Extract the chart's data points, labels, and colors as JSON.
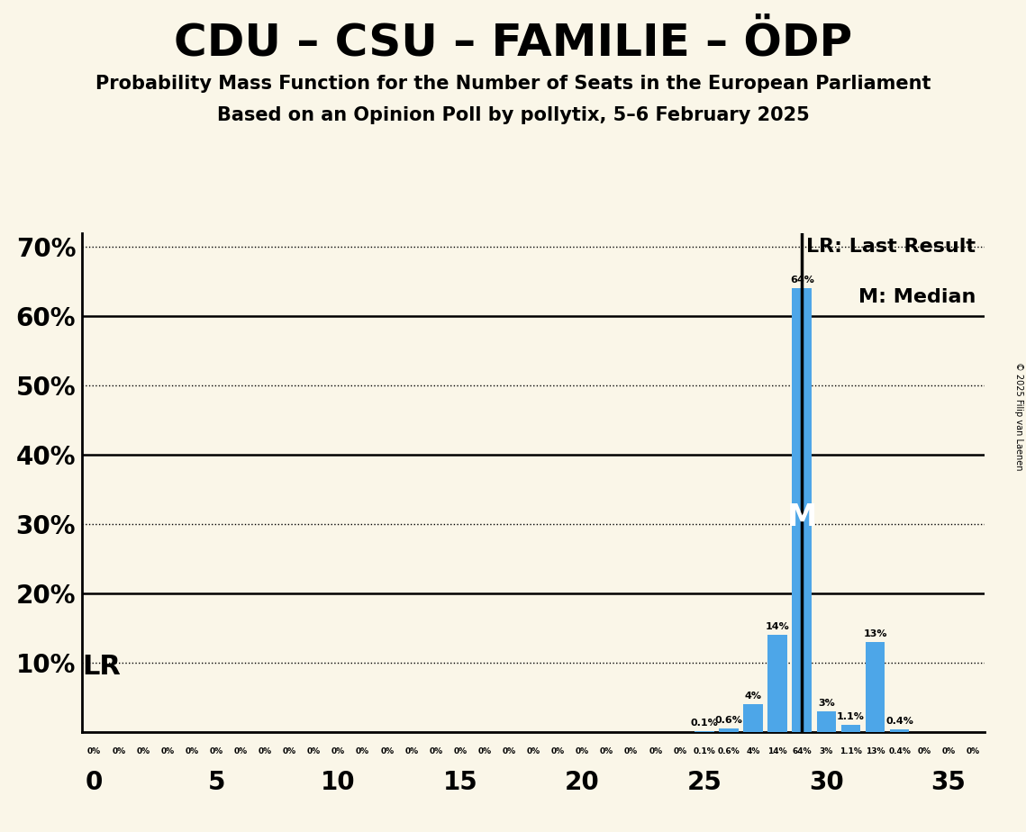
{
  "title": "CDU – CSU – FAMILIE – ÖDP",
  "subtitle1": "Probability Mass Function for the Number of Seats in the European Parliament",
  "subtitle2": "Based on an Opinion Poll by pollytix, 5–6 February 2025",
  "copyright": "© 2025 Filip van Laenen",
  "background_color": "#faf6e8",
  "bar_color": "#4da6e8",
  "seats": [
    0,
    1,
    2,
    3,
    4,
    5,
    6,
    7,
    8,
    9,
    10,
    11,
    12,
    13,
    14,
    15,
    16,
    17,
    18,
    19,
    20,
    21,
    22,
    23,
    24,
    25,
    26,
    27,
    28,
    29,
    30,
    31,
    32,
    33,
    34,
    35,
    36
  ],
  "probabilities": [
    0,
    0,
    0,
    0,
    0,
    0,
    0,
    0,
    0,
    0,
    0,
    0,
    0,
    0,
    0,
    0,
    0,
    0,
    0,
    0,
    0,
    0,
    0,
    0,
    0,
    0.001,
    0.006,
    0.04,
    0.14,
    0.64,
    0.03,
    0.011,
    0.13,
    0.004,
    0,
    0,
    0
  ],
  "labels": [
    "0%",
    "0%",
    "0%",
    "0%",
    "0%",
    "0%",
    "0%",
    "0%",
    "0%",
    "0%",
    "0%",
    "0%",
    "0%",
    "0%",
    "0%",
    "0%",
    "0%",
    "0%",
    "0%",
    "0%",
    "0%",
    "0%",
    "0%",
    "0%",
    "0%",
    "0.1%",
    "0.6%",
    "4%",
    "14%",
    "64%",
    "3%",
    "1.1%",
    "13%",
    "0.4%",
    "0%",
    "0%",
    "0%"
  ],
  "last_result_seat": 29,
  "median_seat": 29,
  "lr_label": "LR: Last Result",
  "m_label": "M: Median",
  "lr_text": "LR",
  "m_text": "M",
  "ylim": [
    0,
    0.72
  ],
  "yticks": [
    0.0,
    0.1,
    0.2,
    0.3,
    0.4,
    0.5,
    0.6,
    0.7
  ],
  "ytick_labels": [
    "",
    "10%",
    "20%",
    "30%",
    "40%",
    "50%",
    "60%",
    "70%"
  ],
  "xmin": -0.5,
  "xmax": 36.5,
  "xtick_positions": [
    0,
    5,
    10,
    15,
    20,
    25,
    30,
    35
  ]
}
